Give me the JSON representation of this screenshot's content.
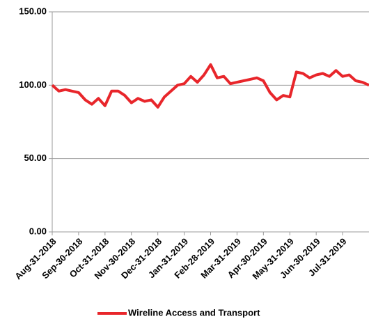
{
  "chart_data": {
    "type": "line",
    "x": [
      "Aug-31-2018",
      null,
      null,
      null,
      "Sep-30-2018",
      null,
      null,
      null,
      "Oct-31-2018",
      null,
      null,
      null,
      "Nov-30-2018",
      null,
      null,
      null,
      "Dec-31-2018",
      null,
      null,
      null,
      "Jan-31-2019",
      null,
      null,
      null,
      "Feb-28-2019",
      null,
      null,
      null,
      "Mar-31-2019",
      null,
      null,
      null,
      "Apr-30-2019",
      null,
      null,
      null,
      "May-31-2019",
      null,
      null,
      null,
      "Jun-30-2019",
      null,
      null,
      null,
      "Jul-31-2019",
      null,
      null,
      null,
      null
    ],
    "series": [
      {
        "name": "Wireline Access and Transport",
        "color": "#e8262b",
        "values": [
          100,
          96,
          97,
          96,
          95,
          90,
          87,
          91,
          86,
          96,
          96,
          93,
          88,
          91,
          89,
          90,
          85,
          92,
          96,
          100,
          101,
          106,
          102,
          107,
          114,
          105,
          106,
          101,
          102,
          103,
          104,
          105,
          103,
          95,
          90,
          93,
          92,
          109,
          108,
          105,
          107,
          108,
          106,
          110,
          106,
          107,
          103,
          102,
          100
        ]
      }
    ],
    "ylim": [
      0,
      150
    ],
    "yticks": [
      {
        "value": 0,
        "label": "0.00"
      },
      {
        "value": 50,
        "label": "50.00"
      },
      {
        "value": 100,
        "label": "100.00"
      },
      {
        "value": 150,
        "label": "150.00"
      }
    ],
    "grid": true,
    "legend": "bottom"
  }
}
